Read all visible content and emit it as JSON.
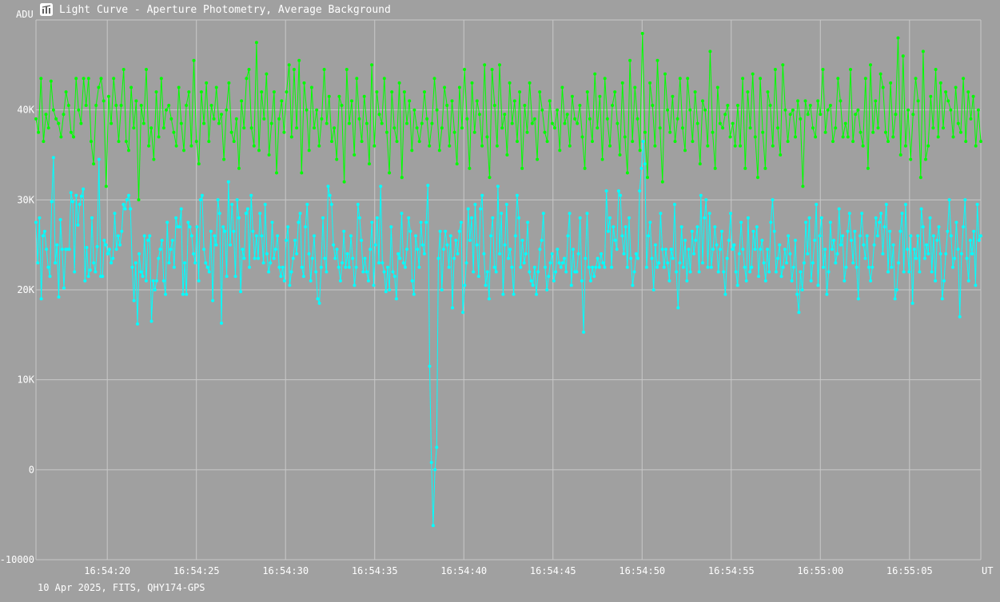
{
  "window": {
    "title": "Light Curve - Aperture Photometry, Average Background"
  },
  "footer": {
    "text": "10 Apr 2025, FITS, QHY174-GPS"
  },
  "colors": {
    "background": "#a0a0a0",
    "grid": "#c8c8c8",
    "text": "#ffffff",
    "series_green": "#00ff00",
    "series_cyan": "#00ffff"
  },
  "chart_data": {
    "type": "line",
    "title": "Light Curve - Aperture Photometry, Average Background",
    "ylabel": "ADU",
    "xlabel": "UT",
    "ylim": [
      -10000,
      50000
    ],
    "xlim_seconds_from_start": [
      16.0,
      69.0
    ],
    "grid": true,
    "x_ticks": [
      "16:54:20",
      "16:54:25",
      "16:54:30",
      "16:54:35",
      "16:54:40",
      "16:54:45",
      "16:54:50",
      "16:54:55",
      "16:55:00",
      "16:55:05"
    ],
    "y_ticks": [
      "-10000",
      "0",
      "10K",
      "20K",
      "30K",
      "40K"
    ],
    "y_tick_values": [
      -10000,
      0,
      10000,
      20000,
      30000,
      40000
    ],
    "series": [
      {
        "color": "#00ff00",
        "values": [
          39000,
          37500,
          43500,
          36500,
          39500,
          38000,
          43200,
          40000,
          39000,
          38500,
          37000,
          39500,
          42000,
          40500,
          37500,
          37000,
          43500,
          40000,
          38500,
          43500,
          40500,
          43500,
          36500,
          34000,
          40500,
          42500,
          43500,
          41000,
          31500,
          41500,
          38500,
          43500,
          40500,
          36500,
          40500,
          44500,
          36500,
          35500,
          42500,
          38000,
          41000,
          30000,
          40500,
          38500,
          44500,
          36000,
          38000,
          34500,
          42000,
          37000,
          43500,
          38000,
          40000,
          40500,
          39000,
          37500,
          36000,
          42500,
          38500,
          35500,
          40500,
          42000,
          36000,
          45500,
          36500,
          34000,
          42000,
          38500,
          43000,
          36500,
          40500,
          39000,
          42500,
          38500,
          39500,
          34500,
          40000,
          43000,
          37500,
          36500,
          39000,
          33500,
          41000,
          38000,
          43500,
          44500,
          38000,
          36000,
          47500,
          35500,
          42000,
          39000,
          44000,
          35000,
          38500,
          42000,
          33000,
          39000,
          41000,
          37500,
          42000,
          45000,
          37000,
          44500,
          38000,
          45500,
          33000,
          43000,
          40000,
          35500,
          42500,
          38000,
          40000,
          36000,
          39000,
          44500,
          38500,
          41500,
          36500,
          38000,
          34500,
          41500,
          40500,
          32000,
          44500,
          38500,
          41000,
          35000,
          43500,
          39000,
          36500,
          41500,
          38500,
          34000,
          45000,
          36000,
          42000,
          39500,
          38500,
          43500,
          37500,
          33000,
          42000,
          38000,
          36500,
          43000,
          32500,
          42000,
          38500,
          41000,
          35500,
          40000,
          38000,
          36500,
          38500,
          42000,
          39000,
          36000,
          38500,
          43500,
          40000,
          35500,
          38000,
          42500,
          40500,
          36000,
          41000,
          37500,
          34000,
          42500,
          38000,
          44500,
          39000,
          33500,
          43000,
          37500,
          41000,
          39500,
          36000,
          45000,
          37000,
          32500,
          44500,
          40500,
          36000,
          45000,
          38000,
          39500,
          35000,
          43000,
          38500,
          41000,
          36500,
          42000,
          33500,
          40500,
          37500,
          43000,
          38500,
          39000,
          34500,
          42000,
          40000,
          37500,
          36500,
          41000,
          38500,
          38000,
          40000,
          35500,
          42500,
          38500,
          39500,
          36000,
          41500,
          39000,
          38500,
          40500,
          37000,
          33500,
          42000,
          39000,
          36500,
          44000,
          38000,
          41500,
          34500,
          43500,
          39000,
          36000,
          40500,
          42000,
          38500,
          35000,
          43000,
          37000,
          33000,
          45500,
          36500,
          42500,
          39000,
          35500,
          48500,
          37500,
          32500,
          43000,
          40500,
          36000,
          45500,
          38000,
          32000,
          44000,
          40000,
          37500,
          41500,
          36500,
          39000,
          43500,
          38000,
          35500,
          43500,
          40000,
          36500,
          42000,
          38500,
          34000,
          41000,
          40000,
          36000,
          46500,
          37500,
          33500,
          42500,
          38500,
          38000,
          39500,
          40500,
          37000,
          38500,
          36000,
          40500,
          36000,
          43500,
          33500,
          42000,
          38000,
          44000,
          37000,
          32500,
          43500,
          37500,
          33500,
          42000,
          40500,
          36000,
          44500,
          38000,
          35000,
          45000,
          40000,
          36500,
          39500,
          40000,
          37000,
          41000,
          39000,
          31500,
          41000,
          39500,
          40500,
          38000,
          37000,
          41000,
          39500,
          44500,
          37500,
          40000,
          40500,
          36500,
          38000,
          43500,
          41000,
          37000,
          38500,
          37000,
          44500,
          36500,
          39500,
          40000,
          37500,
          36000,
          43500,
          33500,
          45000,
          37500,
          41000,
          38000,
          44000,
          42500,
          37500,
          36500,
          43000,
          37000,
          39500,
          48000,
          35000,
          46000,
          36000,
          40000,
          34500,
          39500,
          43500,
          41000,
          32500,
          46500,
          34500,
          36000,
          41500,
          38000,
          44500,
          37000,
          43000,
          38000,
          42000,
          41000,
          40000,
          37000,
          42500,
          38500,
          37500,
          43500,
          36500,
          42000,
          39000,
          41500,
          36000,
          40000,
          36500
        ]
      },
      {
        "color": "#00ffff",
        "values": [
          27500,
          23000,
          28000,
          19000,
          26000,
          26500,
          24500,
          22500,
          21500,
          29800,
          34700,
          23000,
          25000,
          19200,
          27800,
          24500,
          20200,
          24500,
          24500,
          24500,
          30800,
          29800,
          22000,
          30500,
          27200,
          29500,
          30400,
          31200,
          21000,
          24700,
          21500,
          22200,
          28000,
          23000,
          22000,
          24800,
          34500,
          21500,
          21500,
          25500,
          25000,
          24000,
          24500,
          23000,
          23500,
          28500,
          24500,
          26000,
          25000,
          26500,
          29500,
          29000,
          30000,
          30500,
          29000,
          22500,
          18800,
          23000,
          16200,
          24000,
          22000,
          21500,
          26000,
          21000,
          25500,
          26000,
          16500,
          21000,
          20000,
          21000,
          23500,
          24500,
          25500,
          21000,
          19500,
          27500,
          23000,
          24500,
          25500,
          22500,
          28000,
          27000,
          27000,
          29000,
          19500,
          23000,
          19500,
          27500,
          27000,
          26000,
          24000,
          23000,
          27000,
          21000,
          30000,
          30500,
          24500,
          23000,
          22500,
          22000,
          26500,
          18800,
          26000,
          25000,
          30000,
          28500,
          16300,
          27000,
          26500,
          21500,
          32000,
          25000,
          29500,
          26500,
          21500,
          30000,
          28000,
          19800,
          24500,
          23500,
          28500,
          29000,
          22500,
          30500,
          26500,
          23500,
          26000,
          23500,
          28500,
          26000,
          23000,
          29500,
          24000,
          22000,
          23000,
          27500,
          23500,
          24500,
          26000,
          22500,
          21500,
          22500,
          21000,
          25500,
          27000,
          20500,
          22000,
          23500,
          25500,
          24000,
          27500,
          28500,
          22500,
          21500,
          27000,
          29500,
          24000,
          21000,
          23500,
          26000,
          22000,
          19000,
          18500,
          22500,
          28000,
          23500,
          22000,
          31500,
          30500,
          29500,
          25000,
          23500,
          24500,
          22500,
          21000,
          23000,
          26500,
          22500,
          24000,
          22500,
          26000,
          23500,
          20500,
          22500,
          29500,
          28000,
          25500,
          22000,
          23500,
          22000,
          21000,
          24500,
          27500,
          20500,
          25000,
          28000,
          23000,
          31500,
          23000,
          22000,
          19800,
          22500,
          20000,
          27000,
          22000,
          21500,
          19000,
          24000,
          23500,
          28500,
          23000,
          22500,
          24500,
          28000,
          26500,
          21000,
          19500,
          26000,
          24500,
          22500,
          27500,
          25000,
          24000,
          27500,
          31600,
          11500,
          800,
          -6200,
          0,
          2500,
          23500,
          26500,
          20000,
          24500,
          26500,
          25000,
          22500,
          26000,
          18000,
          23500,
          25500,
          24000,
          26500,
          27500,
          17500,
          20500,
          23000,
          29000,
          25500,
          28000,
          22000,
          29500,
          25000,
          21500,
          29000,
          30500,
          24000,
          20500,
          22000,
          19000,
          26000,
          28000,
          22500,
          22000,
          31500,
          24000,
          28500,
          19500,
          25000,
          29500,
          23500,
          24500,
          22500,
          19500,
          26000,
          30500,
          28000,
          22500,
          25500,
          23000,
          24000,
          27500,
          22000,
          21000,
          20500,
          22500,
          19500,
          22000,
          24500,
          25500,
          28500,
          22500,
          20000,
          21500,
          23000,
          24000,
          21000,
          22000,
          24500,
          23000,
          22500,
          23000,
          23500,
          22000,
          26000,
          28500,
          20500,
          24500,
          22000,
          22000,
          24000,
          28000,
          21000,
          15300,
          23500,
          28500,
          22500,
          21000,
          22500,
          21500,
          22500,
          23500,
          22500,
          24000,
          23000,
          22500,
          31000,
          26500,
          28000,
          22500,
          27000,
          25500,
          24500,
          31000,
          30500,
          26000,
          24000,
          27000,
          22500,
          28000,
          23500,
          20500,
          22000,
          24000,
          23500,
          31000,
          33500,
          36500,
          34000,
          22500,
          26000,
          27500,
          23500,
          20000,
          25000,
          22500,
          23000,
          28500,
          24500,
          22500,
          24500,
          23000,
          21000,
          24500,
          23500,
          29500,
          22000,
          18000,
          23000,
          27000,
          22500,
          25500,
          21000,
          24500,
          22000,
          26500,
          24000,
          25500,
          27000,
          22000,
          30500,
          23000,
          28000,
          30000,
          22500,
          28500,
          22500,
          24500,
          27000,
          25000,
          22000,
          24500,
          26500,
          22000,
          19500,
          23500,
          25500,
          28500,
          24500,
          25000,
          22000,
          20500,
          24000,
          27500,
          24500,
          22500,
          21000,
          28000,
          22000,
          22500,
          26500,
          24500,
          27000,
          21500,
          24500,
          25500,
          23000,
          21000,
          24500,
          22000,
          27500,
          30000,
          26500,
          22000,
          23500,
          25000,
          21500,
          22500,
          24500,
          23000,
          26000,
          24000,
          21000,
          22500,
          25500,
          19500,
          17500,
          22000,
          20000,
          23000,
          27500,
          24000,
          28000,
          21000,
          23000,
          25500,
          29500,
          20500,
          26000,
          28000,
          22500,
          24500,
          19500,
          22000,
          27500,
          24500,
          25500,
          23000,
          24000,
          29000,
          25000,
          26000,
          21000,
          22500,
          26500,
          28500,
          25500,
          23000,
          26500,
          22500,
          19000,
          26000,
          28500,
          25000,
          23500,
          26000,
          22500,
          21000,
          22500,
          25000,
          28000,
          26000,
          27500,
          28500,
          24000,
          27000,
          29500,
          22000,
          26500,
          22500,
          25000,
          19000,
          20000,
          23000,
          26500,
          28500,
          22000,
          29500,
          24500,
          22000,
          26000,
          18500,
          24500,
          23500,
          26000,
          22000,
          29000,
          27000,
          23500,
          25000,
          24000,
          28000,
          22000,
          26000,
          21000,
          25500,
          27000,
          24000,
          19000,
          21000,
          24000,
          26500,
          30000,
          26000,
          22500,
          23500,
          27500,
          24500,
          17000,
          24000,
          27000,
          30000,
          23500,
          21000,
          25500,
          24000,
          26500,
          20500,
          29500,
          25500,
          26000
        ]
      }
    ]
  }
}
